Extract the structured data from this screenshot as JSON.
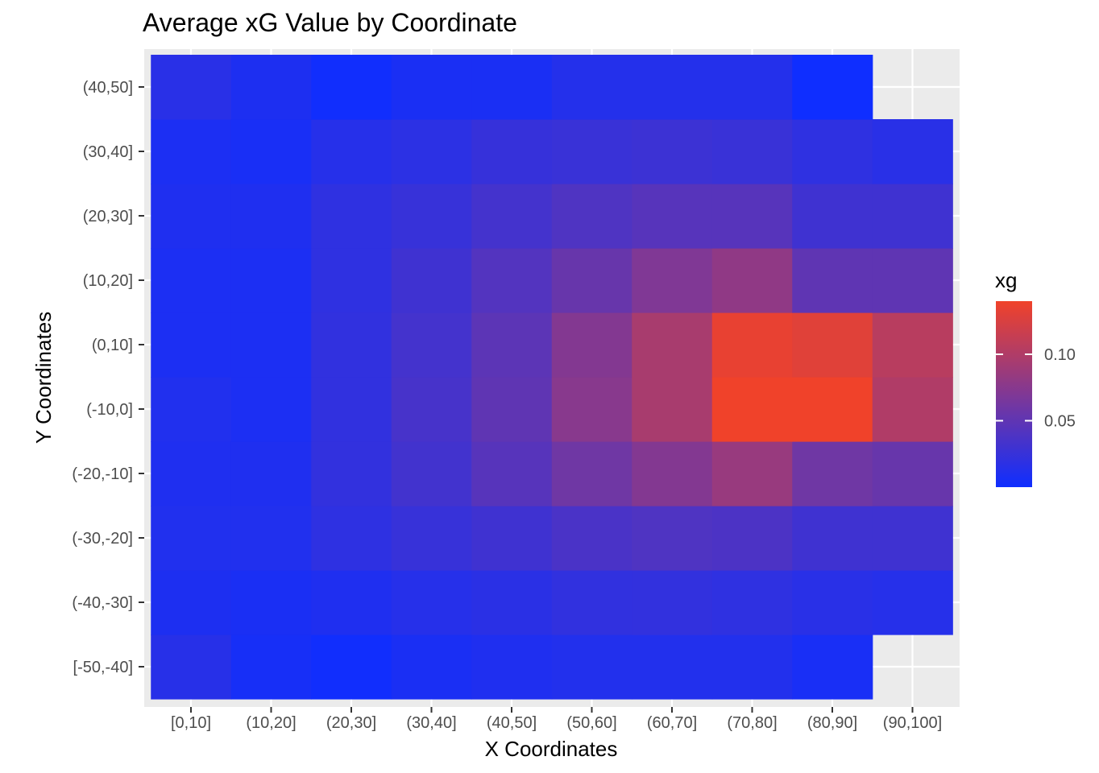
{
  "chart_data": {
    "type": "heatmap",
    "title": "Average xG Value by Coordinate",
    "xlabel": "X Coordinates",
    "ylabel": "Y Coordinates",
    "x_categories": [
      "[0,10]",
      "(10,20]",
      "(20,30]",
      "(30,40]",
      "(40,50]",
      "(50,60]",
      "(60,70]",
      "(70,80]",
      "(80,90]",
      "(90,100]"
    ],
    "y_categories": [
      "[-50,-40]",
      "(-40,-30]",
      "(-30,-20]",
      "(-20,-10]",
      "(-10,0]",
      "(0,10]",
      "(10,20]",
      "(20,30]",
      "(30,40]",
      "(40,50]"
    ],
    "values": [
      [
        0.015,
        0.005,
        0.001,
        0.007,
        0.01,
        0.012,
        0.012,
        0.012,
        0.006,
        null
      ],
      [
        0.009,
        0.007,
        0.01,
        0.014,
        0.017,
        0.021,
        0.022,
        0.02,
        0.016,
        0.014
      ],
      [
        0.011,
        0.011,
        0.019,
        0.025,
        0.03,
        0.037,
        0.04,
        0.038,
        0.03,
        0.03
      ],
      [
        0.01,
        0.01,
        0.022,
        0.032,
        0.045,
        0.06,
        0.072,
        0.085,
        0.06,
        0.055
      ],
      [
        0.011,
        0.008,
        0.021,
        0.035,
        0.05,
        0.075,
        0.095,
        0.14,
        0.14,
        0.1
      ],
      [
        0.008,
        0.008,
        0.021,
        0.033,
        0.048,
        0.072,
        0.095,
        0.135,
        0.13,
        0.105
      ],
      [
        0.008,
        0.008,
        0.02,
        0.03,
        0.042,
        0.055,
        0.07,
        0.08,
        0.05,
        0.05
      ],
      [
        0.01,
        0.01,
        0.02,
        0.025,
        0.033,
        0.04,
        0.045,
        0.045,
        0.03,
        0.03
      ],
      [
        0.008,
        0.006,
        0.014,
        0.018,
        0.024,
        0.026,
        0.028,
        0.026,
        0.02,
        0.016
      ],
      [
        0.016,
        0.009,
        0.001,
        0.007,
        0.007,
        0.013,
        0.013,
        0.013,
        0.0,
        null
      ]
    ],
    "legend": {
      "title": "xg",
      "placement": "right",
      "ticks": [
        0.05,
        0.1
      ],
      "tick_labels": [
        "0.05",
        "0.10"
      ],
      "range": [
        0.0,
        0.14
      ],
      "low_color": "#0f2eff",
      "high_color": "#f0422a"
    },
    "grid": true,
    "panel_background": "#ebebeb",
    "gridline_color": "#ffffff"
  }
}
